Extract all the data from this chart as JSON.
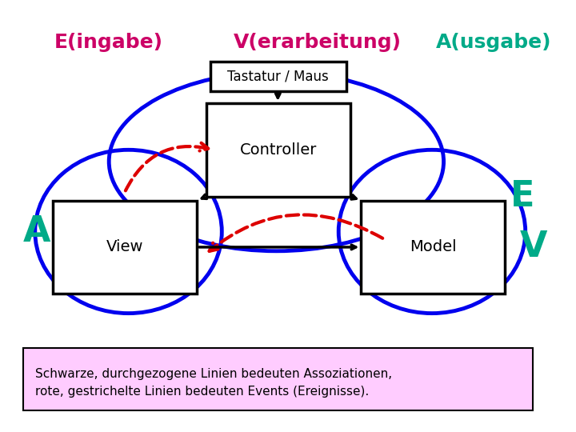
{
  "title_left": "E(ingabe)",
  "title_mid": "V(erarbeitung)",
  "title_right": "A(usgabe)",
  "title_color_left": "#cc0066",
  "title_color_mid": "#cc0066",
  "title_color_right": "#00aa88",
  "label_E": "E",
  "label_A": "A",
  "label_V": "V",
  "label_color_E": "#00aa88",
  "label_color_A": "#00aa88",
  "label_color_V": "#00aa88",
  "box_controller_label": "Controller",
  "box_view_label": "View",
  "box_model_label": "Model",
  "tastatur_label": "Tastatur / Maus",
  "footer_text": "Schwarze, durchgezogene Linien bedeuten Assoziationen,\nrote, gestrichelte Linien bedeuten Events (Ereignisse).",
  "footer_bg": "#ffccff",
  "blue_color": "#0000ee",
  "black_color": "#000000",
  "red_dashed_color": "#dd0000",
  "lw_blue": 3.5,
  "lw_black": 2.5,
  "lw_red": 3.0
}
